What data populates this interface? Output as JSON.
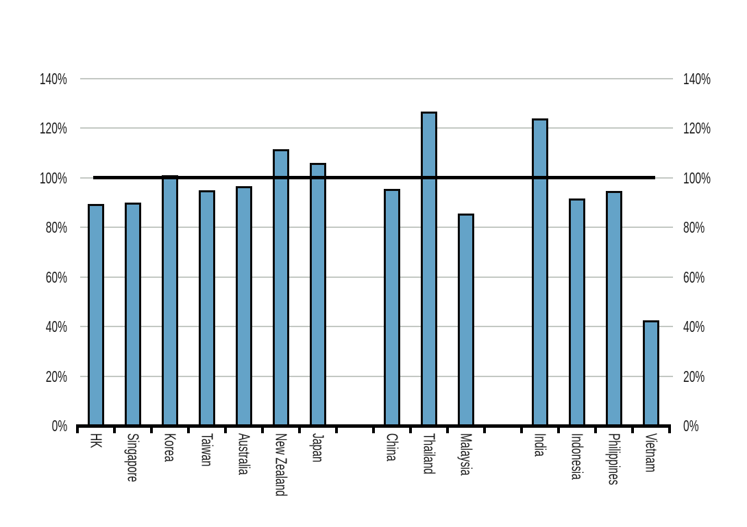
{
  "chart_data": {
    "type": "bar",
    "title": "",
    "xlabel": "",
    "ylabel": "",
    "unit": "percent",
    "categories": [
      "HK",
      "Singapore",
      "Korea",
      "Taiwan",
      "Australia",
      "New Zealand",
      "Japan",
      "",
      "China",
      "Thailand",
      "Malaysia",
      "",
      "India",
      "Indonesia",
      "Philippines",
      "Vietnam"
    ],
    "values": [
      89.5,
      90,
      101,
      95,
      96.5,
      111.5,
      106,
      null,
      95.5,
      126.5,
      85.5,
      null,
      124,
      91.5,
      94.5,
      42.5
    ],
    "ylim": [
      0,
      140
    ],
    "y_tick_values": [
      0,
      20,
      40,
      60,
      80,
      100,
      120,
      140
    ],
    "y_tick_labels": [
      "0%",
      "20%",
      "40%",
      "60%",
      "80%",
      "100%",
      "120%",
      "140%"
    ],
    "y_axis_sides": [
      "left",
      "right"
    ],
    "grid": true,
    "legend": null,
    "reference_line": {
      "value": 100,
      "label": "100%",
      "color": "#000000"
    },
    "colors": {
      "bar_fill": "#64a3c8",
      "bar_border": "#0a0a0a",
      "gridline": "#c3c8c3",
      "axis": "#000000",
      "text": "#1a1a1a",
      "background": "#ffffff"
    }
  }
}
